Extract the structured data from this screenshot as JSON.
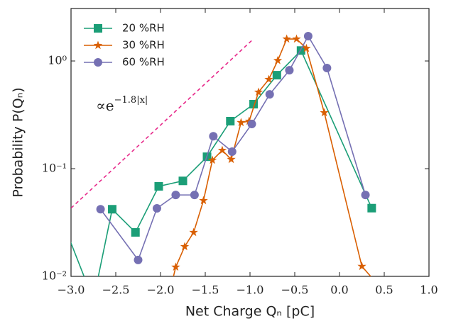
{
  "chart_data": {
    "type": "line",
    "log_y": true,
    "x_label": "Net Charge Qₙ [pC]",
    "y_label": "Probability P(Qₙ)",
    "xlim": [
      -3.0,
      1.0
    ],
    "ylim": [
      0.01,
      3.07
    ],
    "xticks": [
      {
        "value": -3.0,
        "label": "−3.0"
      },
      {
        "value": -2.5,
        "label": "−2.5"
      },
      {
        "value": -2.0,
        "label": "−2.0"
      },
      {
        "value": -1.5,
        "label": "−1.5"
      },
      {
        "value": -1.0,
        "label": "−1.0"
      },
      {
        "value": -0.5,
        "label": "−0.5"
      },
      {
        "value": 0.0,
        "label": "0.0"
      },
      {
        "value": 0.5,
        "label": "0.5"
      },
      {
        "value": 1.0,
        "label": "1.0"
      }
    ],
    "yticks": [
      {
        "value": 0.01,
        "label": "10⁻²"
      },
      {
        "value": 0.1,
        "label": "10⁻¹"
      },
      {
        "value": 1,
        "label": "10⁰"
      }
    ],
    "legend": "upper left",
    "series": [
      {
        "name": "20 %RH",
        "color": "#1b9e77",
        "marker": "square",
        "x": [
          -3.05,
          -2.75,
          -2.54,
          -2.28,
          -2.02,
          -1.75,
          -1.48,
          -1.22,
          -0.96,
          -0.7,
          -0.43,
          0.36
        ],
        "values": [
          0.026,
          0.006,
          0.042,
          0.0256,
          0.0685,
          0.077,
          0.129,
          0.276,
          0.397,
          0.738,
          1.25,
          0.043
        ]
      },
      {
        "name": "30 %RH",
        "color": "#d95f02",
        "marker": "star",
        "x": [
          -1.9,
          -1.83,
          -1.73,
          -1.63,
          -1.52,
          -1.42,
          -1.31,
          -1.21,
          -1.1,
          -1.01,
          -0.905,
          -0.79,
          -0.69,
          -0.59,
          -0.48,
          -0.37,
          -0.17,
          0.25,
          0.45
        ],
        "values": [
          0.007,
          0.0122,
          0.0189,
          0.0256,
          0.0506,
          0.12,
          0.148,
          0.122,
          0.268,
          0.276,
          0.514,
          0.675,
          1.01,
          1.6,
          1.6,
          1.31,
          0.331,
          0.0124,
          0.008
        ]
      },
      {
        "name": "60 %RH",
        "color": "#7570b3",
        "marker": "circle",
        "x": [
          -2.67,
          -2.25,
          -2.04,
          -1.83,
          -1.62,
          -1.41,
          -1.2,
          -0.98,
          -0.78,
          -0.56,
          -0.35,
          -0.14,
          0.29
        ],
        "values": [
          0.042,
          0.0142,
          0.0428,
          0.057,
          0.057,
          0.2,
          0.144,
          0.26,
          0.49,
          0.82,
          1.7,
          0.86,
          0.057
        ]
      }
    ],
    "reference_line": {
      "x": [
        -3.0,
        -0.98
      ],
      "values": [
        0.043,
        1.55
      ],
      "color": "#e7298a"
    },
    "annotation": {
      "base": "∝e",
      "exponent": "−1.8|x|",
      "x": -2.72,
      "y": 0.38
    }
  }
}
